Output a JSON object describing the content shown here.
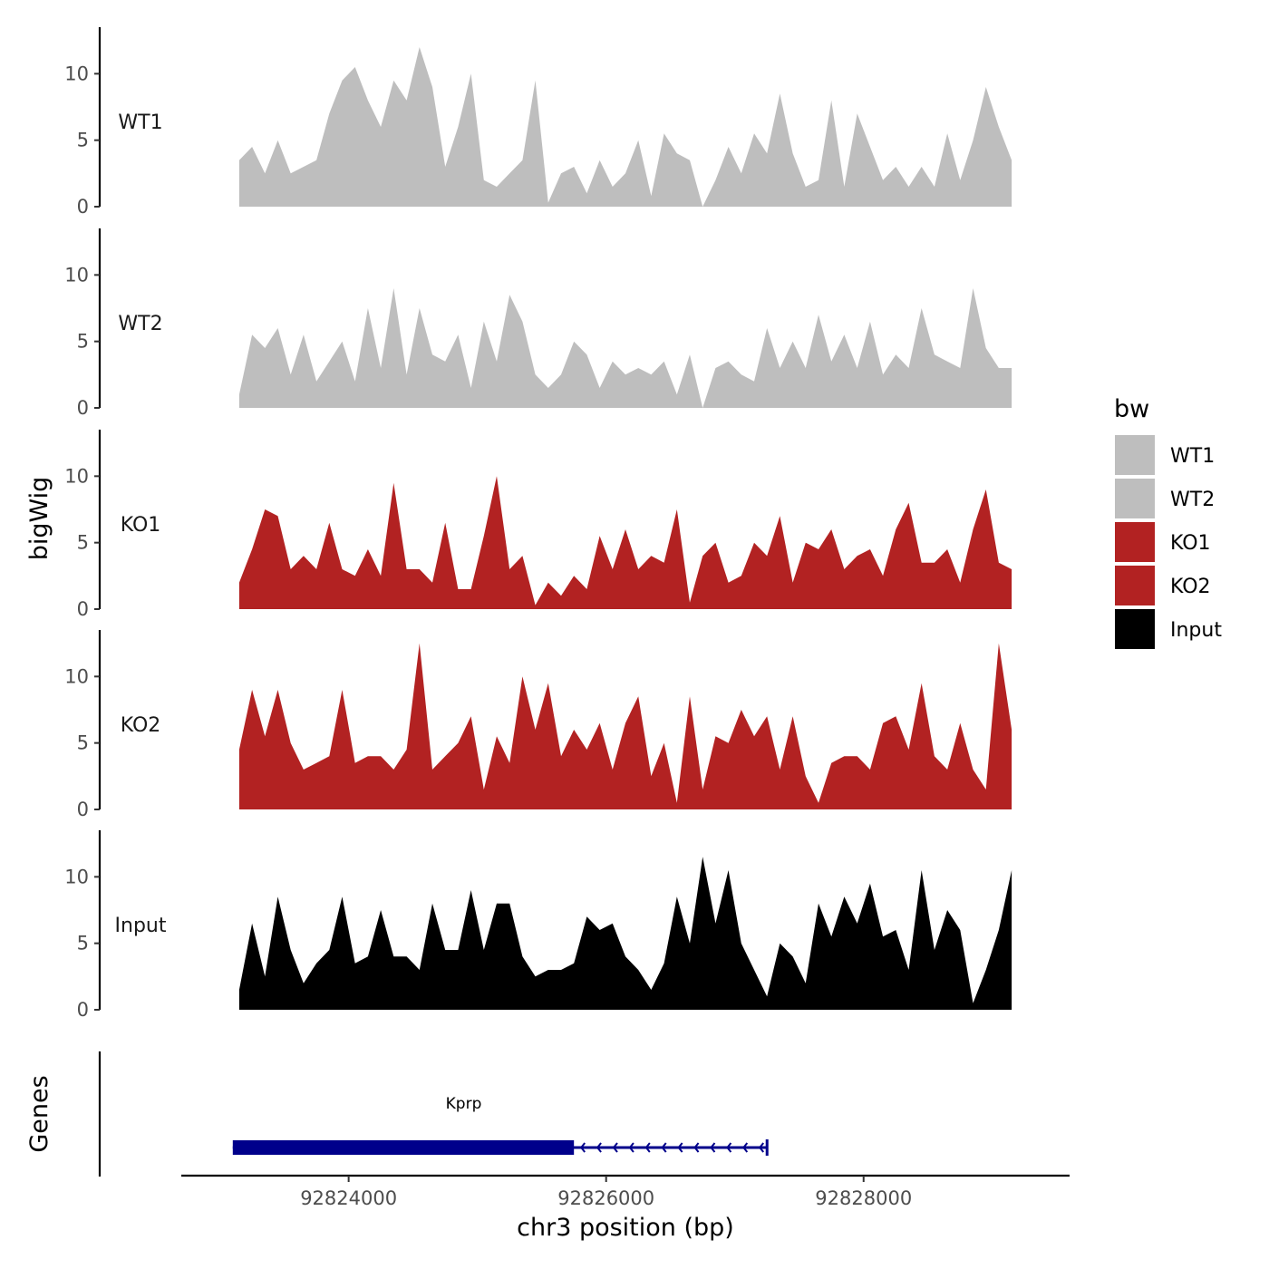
{
  "chart_data": {
    "type": "area",
    "ylabel": "bigWig",
    "xlabel": "chr3 position (bp)",
    "xlim": [
      92822700,
      92829600
    ],
    "ylim": [
      0,
      13.5
    ],
    "y_ticks": [
      0,
      5,
      10
    ],
    "y_tick_labels": [
      "0",
      "5",
      "10"
    ],
    "x_ticks": [
      92824000,
      92826000,
      92828000
    ],
    "x_tick_labels": [
      "92824000",
      "92826000",
      "92828000"
    ],
    "genes_label": "Genes",
    "legend": {
      "title": "bw",
      "entries": [
        {
          "label": "WT1",
          "color": "#bebebe"
        },
        {
          "label": "WT2",
          "color": "#bebebe"
        },
        {
          "label": "KO1",
          "color": "#b22222"
        },
        {
          "label": "KO2",
          "color": "#b22222"
        },
        {
          "label": "Input",
          "color": "#000000"
        }
      ]
    },
    "x": [
      92823150,
      92823250,
      92823350,
      92823450,
      92823550,
      92823650,
      92823750,
      92823850,
      92823950,
      92824050,
      92824150,
      92824250,
      92824350,
      92824450,
      92824550,
      92824650,
      92824750,
      92824850,
      92824950,
      92825050,
      92825150,
      92825250,
      92825350,
      92825450,
      92825550,
      92825650,
      92825750,
      92825850,
      92825950,
      92826050,
      92826150,
      92826250,
      92826350,
      92826450,
      92826550,
      92826650,
      92826750,
      92826850,
      92826950,
      92827050,
      92827150,
      92827250,
      92827350,
      92827450,
      92827550,
      92827650,
      92827750,
      92827850,
      92827950,
      92828050,
      92828150,
      92828250,
      92828350,
      92828450,
      92828550,
      92828650,
      92828750,
      92828850,
      92828950,
      92829050,
      92829150
    ],
    "series": [
      {
        "name": "WT1",
        "color": "#bebebe",
        "values": [
          3.5,
          4.5,
          2.5,
          5.0,
          2.5,
          3.0,
          3.5,
          7.0,
          9.5,
          10.5,
          8.0,
          6.0,
          9.5,
          8.0,
          12.0,
          9.0,
          3.0,
          6.0,
          10.0,
          2.0,
          1.5,
          2.5,
          3.5,
          9.5,
          0.3,
          2.5,
          3.0,
          1.0,
          3.5,
          1.5,
          2.5,
          5.0,
          0.8,
          5.5,
          4.0,
          3.5,
          0.0,
          2.0,
          4.5,
          2.5,
          5.5,
          4.0,
          8.5,
          4.0,
          1.5,
          2.0,
          8.0,
          1.5,
          7.0,
          4.5,
          2.0,
          3.0,
          1.5,
          3.0,
          1.5,
          5.5,
          2.0,
          5.0,
          9.0,
          6.0,
          3.5
        ]
      },
      {
        "name": "WT2",
        "color": "#bebebe",
        "values": [
          1.0,
          5.5,
          4.5,
          6.0,
          2.5,
          5.5,
          2.0,
          3.5,
          5.0,
          2.0,
          7.5,
          3.0,
          9.0,
          2.5,
          7.5,
          4.0,
          3.5,
          5.5,
          1.5,
          6.5,
          3.5,
          8.5,
          6.5,
          2.5,
          1.5,
          2.5,
          5.0,
          4.0,
          1.5,
          3.5,
          2.5,
          3.0,
          2.5,
          3.5,
          1.0,
          4.0,
          0.0,
          3.0,
          3.5,
          2.5,
          2.0,
          6.0,
          3.0,
          5.0,
          3.0,
          7.0,
          3.5,
          5.5,
          3.0,
          6.5,
          2.5,
          4.0,
          3.0,
          7.5,
          4.0,
          3.5,
          3.0,
          9.0,
          4.5,
          3.0,
          3.0
        ]
      },
      {
        "name": "KO1",
        "color": "#b22222",
        "values": [
          2.0,
          4.5,
          7.5,
          7.0,
          3.0,
          4.0,
          3.0,
          6.5,
          3.0,
          2.5,
          4.5,
          2.5,
          9.5,
          3.0,
          3.0,
          2.0,
          6.5,
          1.5,
          1.5,
          5.5,
          10.0,
          3.0,
          4.0,
          0.3,
          2.0,
          1.0,
          2.5,
          1.5,
          5.5,
          3.0,
          6.0,
          3.0,
          4.0,
          3.5,
          7.5,
          0.5,
          4.0,
          5.0,
          2.0,
          2.5,
          5.0,
          4.0,
          7.0,
          2.0,
          5.0,
          4.5,
          6.0,
          3.0,
          4.0,
          4.5,
          2.5,
          6.0,
          8.0,
          3.5,
          3.5,
          4.5,
          2.0,
          6.0,
          9.0,
          3.5,
          3.0
        ]
      },
      {
        "name": "KO2",
        "color": "#b22222",
        "values": [
          4.5,
          9.0,
          5.5,
          9.0,
          5.0,
          3.0,
          3.5,
          4.0,
          9.0,
          3.5,
          4.0,
          4.0,
          3.0,
          4.5,
          12.5,
          3.0,
          4.0,
          5.0,
          7.0,
          1.5,
          5.5,
          3.5,
          10.0,
          6.0,
          9.5,
          4.0,
          6.0,
          4.5,
          6.5,
          3.0,
          6.5,
          8.5,
          2.5,
          5.0,
          0.5,
          8.5,
          1.5,
          5.5,
          5.0,
          7.5,
          5.5,
          7.0,
          3.0,
          7.0,
          2.5,
          0.5,
          3.5,
          4.0,
          4.0,
          3.0,
          6.5,
          7.0,
          4.5,
          9.5,
          4.0,
          3.0,
          6.5,
          3.0,
          1.5,
          12.5,
          6.0
        ]
      },
      {
        "name": "Input",
        "color": "#000000",
        "values": [
          1.5,
          6.5,
          2.5,
          8.5,
          4.5,
          2.0,
          3.5,
          4.5,
          8.5,
          3.5,
          4.0,
          7.5,
          4.0,
          4.0,
          3.0,
          8.0,
          4.5,
          4.5,
          9.0,
          4.5,
          8.0,
          8.0,
          4.0,
          2.5,
          3.0,
          3.0,
          3.5,
          7.0,
          6.0,
          6.5,
          4.0,
          3.0,
          1.5,
          3.5,
          8.5,
          5.0,
          11.5,
          6.5,
          10.5,
          5.0,
          3.0,
          1.0,
          5.0,
          4.0,
          2.0,
          8.0,
          5.5,
          8.5,
          6.5,
          9.5,
          5.5,
          6.0,
          3.0,
          10.5,
          4.5,
          7.5,
          6.0,
          0.5,
          3.0,
          6.0,
          10.5
        ]
      }
    ],
    "gene": {
      "name": "Kprp",
      "start": 92823100,
      "end": 92827250,
      "thick_start": 92823100,
      "thick_end": 92825750,
      "strand": "-",
      "color": "#00008b"
    }
  }
}
